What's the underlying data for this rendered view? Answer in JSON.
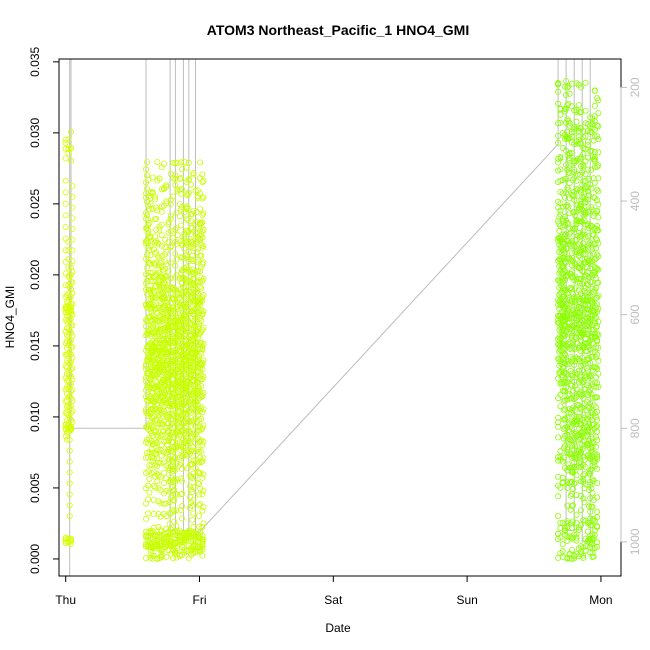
{
  "chart_data": {
    "type": "scatter",
    "title": "ATOM3 Northeast_Pacific_1 HNO4_GMI",
    "xlabel": "Date",
    "ylabel": "HNO4_GMI",
    "x_ticks": [
      "Thu",
      "Fri",
      "Sat",
      "Sun",
      "Mon"
    ],
    "x_range_days": [
      -0.05,
      4.15
    ],
    "ylim": [
      -0.0012,
      0.0352
    ],
    "y_ticks": [
      "0.000",
      "0.005",
      "0.010",
      "0.015",
      "0.020",
      "0.025",
      "0.030",
      "0.035"
    ],
    "y2_label": "",
    "y2_range": [
      1060,
      150
    ],
    "y2_ticks": [
      "200",
      "400",
      "600",
      "800",
      "1000"
    ],
    "colors": {
      "thu_points": "#d8ff00",
      "fri_points": "#c8ff00",
      "mon_points": "#8cff00",
      "pressure_line": "#bdbdbd"
    },
    "series": [
      {
        "day": "Thu",
        "x_start": 0.0,
        "x_end": 0.05,
        "y_min": 0.001,
        "y_max": 0.0302,
        "dense_bands": [
          [
            0.0172,
            0.0179
          ],
          [
            0.009,
            0.0095
          ],
          [
            0.001,
            0.0015
          ],
          [
            0.028,
            0.0302
          ]
        ]
      },
      {
        "day": "Fri",
        "x_start": 0.6,
        "x_end": 1.03,
        "y_min": 0.0,
        "y_max": 0.028,
        "dense_bands": [
          [
            0.0005,
            0.002
          ],
          [
            0.022,
            0.028
          ],
          [
            0.013,
            0.02
          ],
          [
            0.0,
            0.002
          ],
          [
            0.0105,
            0.015
          ]
        ]
      },
      {
        "day": "Mon",
        "x_start": 3.68,
        "x_end": 3.98,
        "y_min": 0.0,
        "y_max": 0.0338,
        "dense_bands": [
          [
            0.0,
            0.003
          ],
          [
            0.02,
            0.0325
          ],
          [
            0.024,
            0.0338
          ],
          [
            0.015,
            0.0185
          ],
          [
            0.005,
            0.01
          ]
        ]
      }
    ],
    "pressure_path": [
      [
        0.03,
        1060
      ],
      [
        0.03,
        150
      ],
      [
        0.04,
        150
      ],
      [
        0.04,
        800
      ],
      [
        0.6,
        800
      ],
      [
        0.6,
        150
      ],
      [
        0.78,
        150
      ],
      [
        0.78,
        980
      ],
      [
        0.82,
        980
      ],
      [
        0.82,
        150
      ],
      [
        0.88,
        150
      ],
      [
        0.88,
        980
      ],
      [
        0.92,
        980
      ],
      [
        0.92,
        150
      ],
      [
        0.97,
        150
      ],
      [
        0.97,
        990
      ],
      [
        3.68,
        300
      ],
      [
        3.68,
        150
      ],
      [
        3.74,
        150
      ],
      [
        3.74,
        980
      ],
      [
        3.8,
        980
      ],
      [
        3.8,
        150
      ],
      [
        3.86,
        150
      ],
      [
        3.86,
        1000
      ],
      [
        3.92,
        1000
      ],
      [
        3.92,
        150
      ]
    ]
  }
}
